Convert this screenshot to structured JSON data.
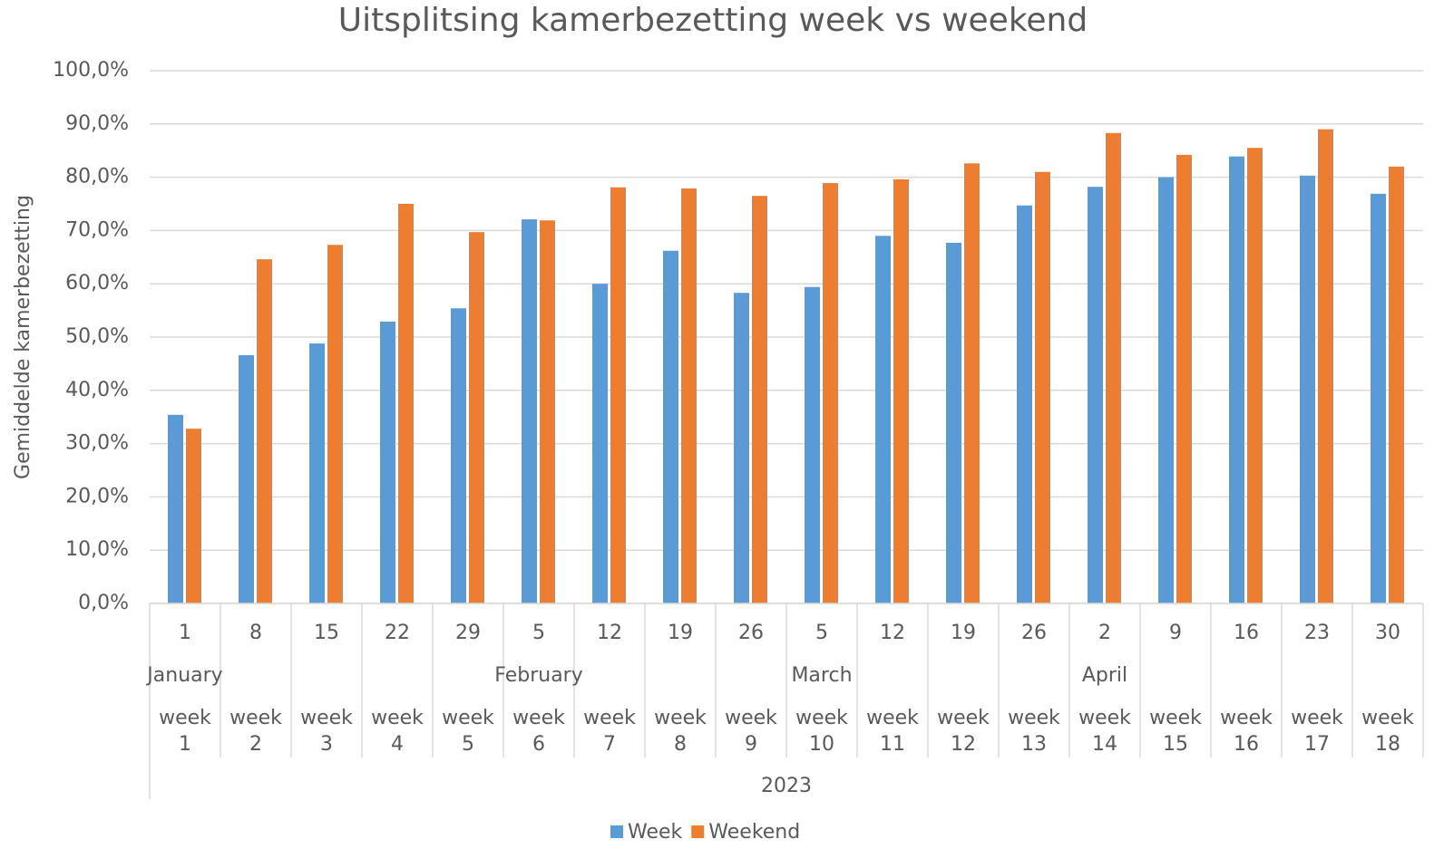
{
  "chart_data": {
    "type": "bar",
    "title": "Uitsplitsing kamerbezetting week vs weekend",
    "y_label": "Gemiddelde kamerbezetting",
    "categories": [
      "1",
      "8",
      "15",
      "22",
      "29",
      "5",
      "12",
      "19",
      "26",
      "5",
      "12",
      "19",
      "26",
      "2",
      "9",
      "16",
      "23",
      "30"
    ],
    "months": [
      "January",
      null,
      null,
      null,
      null,
      "February",
      null,
      null,
      null,
      "March",
      null,
      null,
      null,
      "April",
      null,
      null,
      null,
      null
    ],
    "weeks": [
      "week 1",
      "week 2",
      "week 3",
      "week 4",
      "week 5",
      "week 6",
      "week 7",
      "week 8",
      "week 9",
      "week 10",
      "week 11",
      "week 12",
      "week 13",
      "week 14",
      "week 15",
      "week 16",
      "week 17",
      "week 18"
    ],
    "year": "2023",
    "series": [
      {
        "name": "Week",
        "color": "#5b9bd5",
        "values": [
          35.4,
          46.6,
          48.8,
          52.9,
          55.4,
          72.1,
          60.0,
          66.2,
          58.3,
          59.4,
          69.0,
          67.7,
          74.7,
          78.2,
          80.0,
          83.9,
          80.3,
          76.9
        ]
      },
      {
        "name": "Weekend",
        "color": "#ed7d31",
        "values": [
          32.8,
          64.6,
          67.3,
          75.0,
          69.7,
          71.9,
          78.1,
          77.9,
          76.5,
          78.9,
          79.6,
          82.6,
          81.0,
          88.3,
          84.2,
          85.5,
          89.0,
          82.0
        ]
      }
    ],
    "ylim": [
      0,
      100
    ],
    "yticks": [
      {
        "value": 0,
        "label": "0,0%"
      },
      {
        "value": 10,
        "label": "10,0%"
      },
      {
        "value": 20,
        "label": "20,0%"
      },
      {
        "value": 30,
        "label": "30,0%"
      },
      {
        "value": 40,
        "label": "40,0%"
      },
      {
        "value": 50,
        "label": "50,0%"
      },
      {
        "value": 60,
        "label": "60,0%"
      },
      {
        "value": 70,
        "label": "70,0%"
      },
      {
        "value": 80,
        "label": "80,0%"
      },
      {
        "value": 90,
        "label": "90,0%"
      },
      {
        "value": 100,
        "label": "100,0%"
      }
    ],
    "grid": true,
    "legend": "bottom"
  }
}
